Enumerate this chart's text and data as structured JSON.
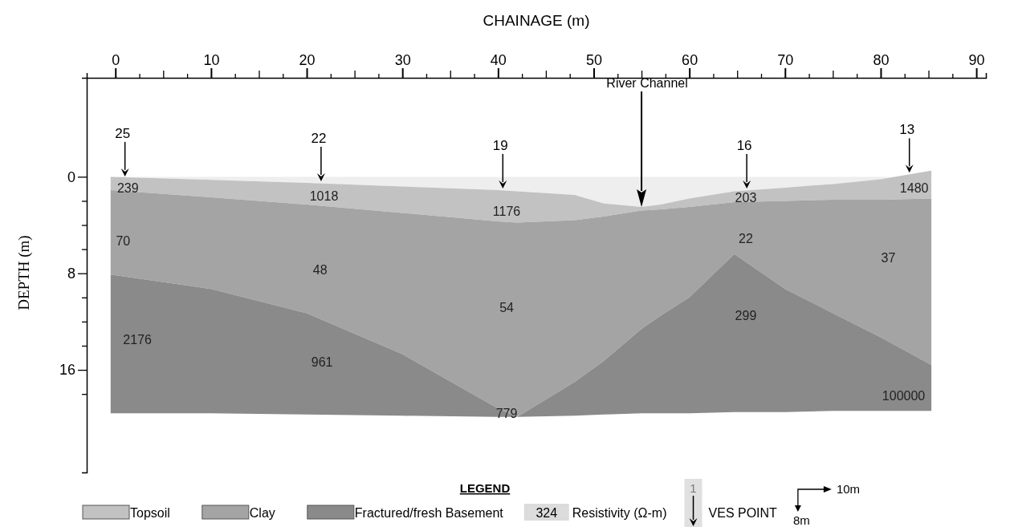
{
  "chart_data": {
    "type": "area",
    "xlabel": "CHAINAGE (m)",
    "ylabel": "DEPTH (m)",
    "legend_title": "LEGEND",
    "legend": "bottom",
    "grid": false,
    "stacked": true,
    "x": [
      -0.5,
      10,
      20,
      30,
      40,
      42,
      48,
      51,
      55,
      57,
      60,
      64.7,
      70,
      75,
      80,
      85.3
    ],
    "xlim": [
      -3,
      91
    ],
    "ylim": [
      24.5,
      -8.2
    ],
    "xticks": [
      0,
      {
        "value": 2.5,
        "label": null
      },
      {
        "value": 5,
        "label": null
      },
      {
        "value": 7.5,
        "label": null
      },
      10,
      {
        "value": 12.5,
        "label": null
      },
      {
        "value": 15,
        "label": null
      },
      {
        "value": 17.5,
        "label": null
      },
      20,
      {
        "value": 22.5,
        "label": null
      },
      {
        "value": 25,
        "label": null
      },
      {
        "value": 27.5,
        "label": null
      },
      30,
      {
        "value": 32.5,
        "label": null
      },
      {
        "value": 35,
        "label": null
      },
      {
        "value": 37.5,
        "label": null
      },
      40,
      {
        "value": 42.5,
        "label": null
      },
      {
        "value": 45,
        "label": null
      },
      {
        "value": 47.5,
        "label": null
      },
      50,
      {
        "value": 52.5,
        "label": null
      },
      {
        "value": 55,
        "label": null
      },
      {
        "value": 57.5,
        "label": null
      },
      60,
      {
        "value": 62.5,
        "label": null
      },
      {
        "value": 65,
        "label": null
      },
      {
        "value": 67.5,
        "label": null
      },
      70,
      {
        "value": 72.5,
        "label": null
      },
      {
        "value": 75,
        "label": null
      },
      {
        "value": 77.5,
        "label": null
      },
      80,
      {
        "value": 82.5,
        "label": null
      },
      {
        "value": 85,
        "label": null
      },
      {
        "value": 87.5,
        "label": null
      },
      90
    ],
    "yticks": [
      0,
      {
        "value": 2,
        "label": null
      },
      {
        "value": 4,
        "label": null
      },
      {
        "value": 6,
        "label": null
      },
      8,
      {
        "value": 10,
        "label": null
      },
      {
        "value": 12,
        "label": null
      },
      {
        "value": 14,
        "label": null
      },
      16,
      {
        "value": 18,
        "label": null
      }
    ],
    "series": [
      {
        "color": "#eeeeee",
        "values": [
          0,
          0.25,
          0.5,
          0.8,
          1.1,
          1.2,
          1.5,
          2.2,
          2.5,
          2.3,
          1.8,
          1.2,
          0.9,
          0.6,
          0.2,
          -0.5
        ]
      },
      {
        "name": "Topsoil",
        "color": "#c2c2c2",
        "values": [
          1.1,
          1.45,
          1.8,
          2.2,
          2.6,
          2.6,
          2.1,
          1.1,
          0.3,
          0.4,
          0.7,
          0.9,
          1.1,
          1.3,
          1.7,
          2.3
        ]
      },
      {
        "name": "Clay",
        "color": "#a4a4a4",
        "values": [
          7.0,
          7.6,
          9.0,
          11.7,
          15.5,
          16.1,
          13.4,
          12.0,
          9.8,
          8.8,
          7.5,
          4.3,
          7.3,
          9.4,
          11.4,
          13.8
        ]
      },
      {
        "name": "Fractured/fresh Basement",
        "color": "#8a8a8a",
        "values": [
          11.5,
          10.3,
          8.4,
          5.1,
          0.7,
          0.0,
          2.8,
          4.4,
          7.0,
          8.1,
          9.6,
          13.1,
          10.2,
          8.1,
          6.1,
          3.8
        ]
      }
    ],
    "annotations": [
      {
        "text": "25",
        "x": 1,
        "y": 0.1
      },
      {
        "text": "22",
        "x": 21.5,
        "y": 0.5
      },
      {
        "text": "19",
        "x": 40.5,
        "y": 1.1
      },
      {
        "text": "16",
        "x": 66,
        "y": 1.1
      },
      {
        "text": "13",
        "x": 83,
        "y": -0.2
      },
      "River Channel",
      "239",
      "1018",
      "1176",
      "203",
      "1480",
      "70",
      "48",
      "54",
      "22",
      "37",
      "2176",
      "961",
      "299",
      "779",
      "100000",
      "324",
      "Resistivity (Ω-m)",
      "1",
      "VES POINT",
      "10m",
      "8m"
    ]
  }
}
